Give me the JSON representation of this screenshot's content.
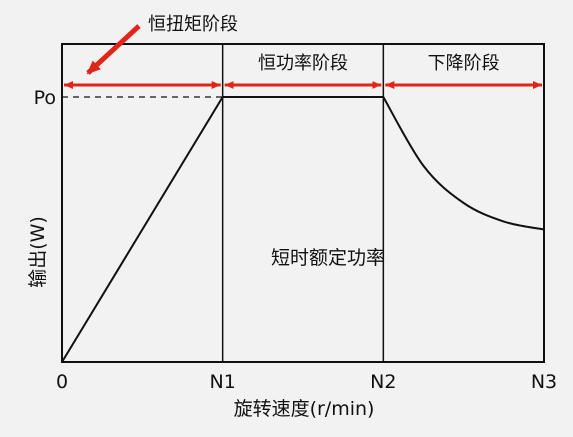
{
  "chart_data": {
    "type": "line",
    "title": "",
    "xlabel": "旋转速度(r/min)",
    "ylabel": "输出(W)",
    "x_ticks": [
      "0",
      "N1",
      "N2",
      "N3"
    ],
    "y_ticks": [
      "Po"
    ],
    "xlim": [
      0,
      3
    ],
    "ylim": [
      0,
      1.2
    ],
    "series": [
      {
        "x": [
          0,
          1,
          2,
          2.25,
          2.5,
          2.75,
          3
        ],
        "y": [
          0,
          1,
          1,
          0.74,
          0.6,
          0.53,
          0.5
        ]
      }
    ],
    "phases": [
      {
        "label": "恒扭矩阶段",
        "from": 0,
        "to": 1
      },
      {
        "label": "恒功率阶段",
        "from": 1,
        "to": 2
      },
      {
        "label": "下降阶段",
        "from": 2,
        "to": 3
      }
    ],
    "annotation": "短时额定功率",
    "accent_color": "#e0251b",
    "line_color": "#111111"
  }
}
